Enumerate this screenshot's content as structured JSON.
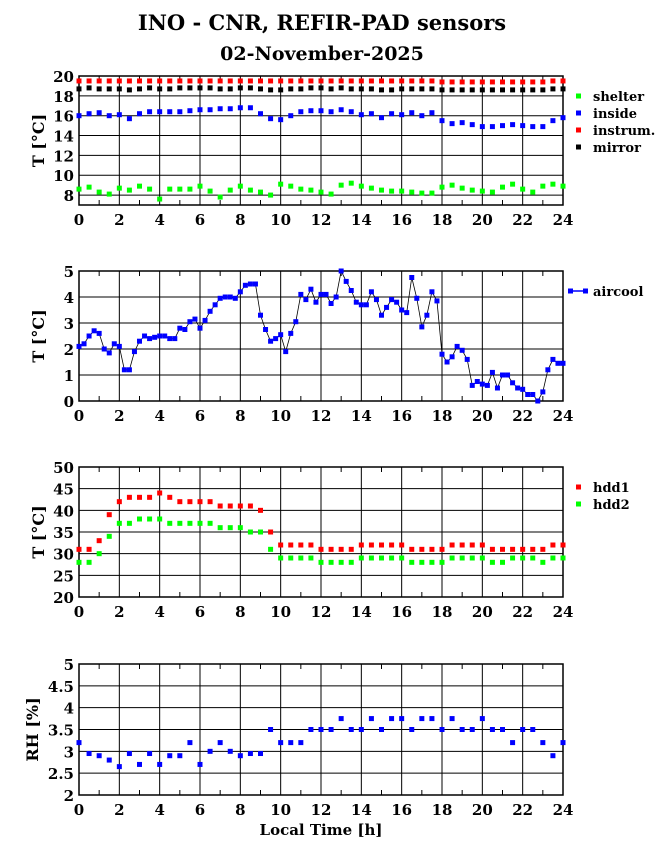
{
  "title": "INO - CNR, REFIR-PAD sensors",
  "subtitle": "02-November-2025",
  "colors": {
    "shelter": "#00ff00",
    "inside": "#0000ff",
    "instrum": "#ff0000",
    "mirror": "#000000",
    "aircool": "#0000ff",
    "hdd1": "#ff0000",
    "hdd2": "#00ff00"
  },
  "chart_data": [
    {
      "type": "scatter",
      "ylabel": "T [°C]",
      "xlabel": "",
      "xlim": [
        0,
        24
      ],
      "ylim": [
        7,
        20
      ],
      "xticks": [
        "0",
        "2",
        "4",
        "6",
        "8",
        "10",
        "12",
        "14",
        "16",
        "18",
        "20",
        "22",
        "24"
      ],
      "yticks": [
        "8",
        "10",
        "12",
        "14",
        "16",
        "18",
        "20"
      ],
      "grid": true,
      "legend": "right",
      "x_step": 0.5,
      "series": [
        {
          "name": "shelter",
          "color": "#00ff00",
          "values": [
            8.6,
            8.8,
            8.3,
            8.1,
            8.7,
            8.5,
            8.9,
            8.6,
            7.6,
            8.6,
            8.6,
            8.6,
            8.9,
            8.4,
            7.8,
            8.5,
            8.9,
            8.5,
            8.3,
            8.0,
            9.1,
            8.9,
            8.6,
            8.5,
            8.3,
            8.1,
            9.0,
            9.2,
            8.9,
            8.7,
            8.5,
            8.4,
            8.4,
            8.3,
            8.2,
            8.2,
            8.8,
            9.0,
            8.7,
            8.5,
            8.4,
            8.3,
            8.8,
            9.1,
            8.6,
            8.3,
            8.9,
            9.1,
            8.9
          ]
        },
        {
          "name": "inside",
          "color": "#0000ff",
          "values": [
            16.0,
            16.2,
            16.3,
            16.0,
            16.1,
            15.7,
            16.2,
            16.4,
            16.4,
            16.4,
            16.4,
            16.5,
            16.6,
            16.6,
            16.7,
            16.7,
            16.8,
            16.8,
            16.2,
            15.7,
            15.6,
            16.0,
            16.4,
            16.5,
            16.5,
            16.4,
            16.6,
            16.4,
            16.1,
            16.2,
            15.8,
            16.2,
            16.1,
            16.3,
            16.0,
            16.3,
            15.5,
            15.2,
            15.3,
            15.1,
            14.9,
            14.9,
            15.0,
            15.1,
            15.0,
            14.9,
            14.9,
            15.5,
            15.8
          ]
        },
        {
          "name": "instrum.",
          "color": "#ff0000",
          "values": [
            19.5,
            19.5,
            19.5,
            19.5,
            19.5,
            19.5,
            19.5,
            19.5,
            19.5,
            19.5,
            19.5,
            19.5,
            19.5,
            19.5,
            19.5,
            19.5,
            19.5,
            19.5,
            19.5,
            19.5,
            19.5,
            19.5,
            19.5,
            19.5,
            19.5,
            19.5,
            19.5,
            19.5,
            19.5,
            19.5,
            19.5,
            19.5,
            19.5,
            19.5,
            19.5,
            19.5,
            19.4,
            19.4,
            19.4,
            19.4,
            19.4,
            19.4,
            19.4,
            19.4,
            19.4,
            19.4,
            19.4,
            19.5,
            19.5
          ]
        },
        {
          "name": "mirror",
          "color": "#000000",
          "values": [
            18.7,
            18.8,
            18.7,
            18.7,
            18.7,
            18.6,
            18.7,
            18.8,
            18.7,
            18.7,
            18.8,
            18.8,
            18.8,
            18.8,
            18.7,
            18.7,
            18.8,
            18.8,
            18.7,
            18.6,
            18.6,
            18.7,
            18.7,
            18.8,
            18.8,
            18.7,
            18.8,
            18.7,
            18.7,
            18.7,
            18.6,
            18.6,
            18.7,
            18.7,
            18.7,
            18.7,
            18.6,
            18.6,
            18.6,
            18.6,
            18.6,
            18.6,
            18.6,
            18.6,
            18.6,
            18.6,
            18.6,
            18.7,
            18.7
          ]
        }
      ]
    },
    {
      "type": "line",
      "ylabel": "T [°C]",
      "xlabel": "",
      "xlim": [
        0,
        24
      ],
      "ylim": [
        0,
        5
      ],
      "xticks": [
        "0",
        "2",
        "4",
        "6",
        "8",
        "10",
        "12",
        "14",
        "16",
        "18",
        "20",
        "22",
        "24"
      ],
      "yticks": [
        "0",
        "1",
        "2",
        "3",
        "4",
        "5"
      ],
      "grid": true,
      "legend": "right",
      "x_step": 0.25,
      "series": [
        {
          "name": "aircool",
          "color": "#0000ff",
          "values": [
            2.1,
            2.2,
            2.5,
            2.7,
            2.6,
            2.0,
            1.85,
            2.2,
            2.1,
            1.2,
            1.2,
            1.9,
            2.3,
            2.5,
            2.4,
            2.45,
            2.5,
            2.5,
            2.4,
            2.4,
            2.8,
            2.75,
            3.05,
            3.15,
            2.8,
            3.1,
            3.45,
            3.7,
            3.95,
            4.0,
            4.0,
            3.95,
            4.2,
            4.45,
            4.5,
            4.5,
            3.3,
            2.75,
            2.3,
            2.4,
            2.55,
            1.9,
            2.6,
            3.05,
            4.1,
            3.9,
            4.3,
            3.8,
            4.1,
            4.1,
            3.75,
            4.0,
            5.0,
            4.6,
            4.25,
            3.8,
            3.7,
            3.7,
            4.2,
            3.9,
            3.3,
            3.6,
            3.9,
            3.8,
            3.5,
            3.4,
            4.75,
            3.95,
            2.85,
            3.3,
            4.2,
            3.85,
            1.8,
            1.5,
            1.7,
            2.1,
            1.95,
            1.6,
            0.6,
            0.75,
            0.65,
            0.6,
            1.1,
            0.5,
            1.0,
            1.0,
            0.7,
            0.5,
            0.45,
            0.25,
            0.25,
            0.0,
            0.35,
            1.2,
            1.6,
            1.45,
            1.45
          ]
        }
      ]
    },
    {
      "type": "scatter",
      "ylabel": "T [°C]",
      "xlabel": "",
      "xlim": [
        0,
        24
      ],
      "ylim": [
        20,
        50
      ],
      "xticks": [
        "0",
        "2",
        "4",
        "6",
        "8",
        "10",
        "12",
        "14",
        "16",
        "18",
        "20",
        "22",
        "24"
      ],
      "yticks": [
        "20",
        "25",
        "30",
        "35",
        "40",
        "45",
        "50"
      ],
      "grid": true,
      "legend": "right",
      "x_step": 0.5,
      "series": [
        {
          "name": "hdd1",
          "color": "#ff0000",
          "values": [
            31,
            31,
            33,
            39,
            42,
            43,
            43,
            43,
            44,
            43,
            42,
            42,
            42,
            42,
            41,
            41,
            41,
            41,
            40,
            35,
            32,
            32,
            32,
            32,
            31,
            31,
            31,
            31,
            32,
            32,
            32,
            32,
            32,
            31,
            31,
            31,
            31,
            32,
            32,
            32,
            32,
            31,
            31,
            31,
            31,
            31,
            31,
            32,
            32
          ]
        },
        {
          "name": "hdd2",
          "color": "#00ff00",
          "values": [
            28,
            28,
            30,
            34,
            37,
            37,
            38,
            38,
            38,
            37,
            37,
            37,
            37,
            37,
            36,
            36,
            36,
            35,
            35,
            31,
            29,
            29,
            29,
            29,
            28,
            28,
            28,
            28,
            29,
            29,
            29,
            29,
            29,
            28,
            28,
            28,
            28,
            29,
            29,
            29,
            29,
            28,
            28,
            29,
            29,
            29,
            28,
            29,
            29
          ]
        }
      ]
    },
    {
      "type": "scatter",
      "ylabel": "RH [%]",
      "xlabel": "Local Time [h]",
      "xlim": [
        0,
        24
      ],
      "ylim": [
        2,
        5
      ],
      "xticks": [
        "0",
        "2",
        "4",
        "6",
        "8",
        "10",
        "12",
        "14",
        "16",
        "18",
        "20",
        "22",
        "24"
      ],
      "yticks": [
        "2",
        "2.5",
        "3",
        "3.5",
        "4",
        "4.5",
        "5"
      ],
      "grid": true,
      "legend": "none",
      "x_step": 0.5,
      "series": [
        {
          "name": "RH",
          "color": "#0000ff",
          "values": [
            3.2,
            2.95,
            2.9,
            2.8,
            2.65,
            2.95,
            2.7,
            2.95,
            2.7,
            2.9,
            2.9,
            3.2,
            2.7,
            3.0,
            3.2,
            3.0,
            2.9,
            2.95,
            2.95,
            3.5,
            3.2,
            3.2,
            3.2,
            3.5,
            3.5,
            3.5,
            3.75,
            3.5,
            3.5,
            3.75,
            3.5,
            3.75,
            3.75,
            3.5,
            3.75,
            3.75,
            3.5,
            3.75,
            3.5,
            3.5,
            3.75,
            3.5,
            3.5,
            3.2,
            3.5,
            3.5,
            3.2,
            2.9,
            3.2
          ]
        }
      ]
    }
  ]
}
